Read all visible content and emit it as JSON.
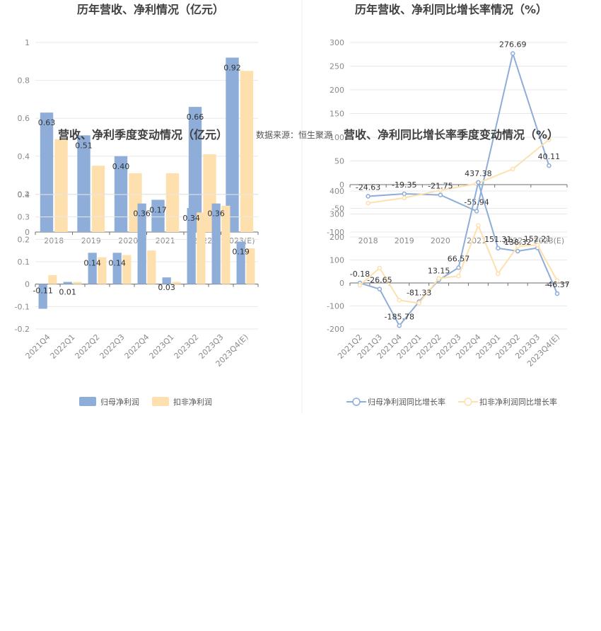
{
  "source_note": "数据来源：恒生聚源",
  "colors": {
    "net_profit": "#8eadd8",
    "deducted_profit": "#fde0ae",
    "net_profit_line": "#8eadd8",
    "deducted_line": "#fde0ae",
    "grid": "#e8e8e8",
    "axis": "#6e6e6e",
    "divider": "#eeeeee"
  },
  "chart_data": [
    {
      "id": "annual_amount",
      "type": "bar",
      "title": "历年营收、净利情况（亿元）",
      "categories": [
        "2018",
        "2019",
        "2020",
        "2021",
        "2022",
        "2023(E)"
      ],
      "x_tick_labels": [
        "2018",
        "2019",
        "2020",
        "2021",
        "2022",
        "2023(E)"
      ],
      "series": [
        {
          "name": "归母净利润",
          "values": [
            0.63,
            0.51,
            0.4,
            0.17,
            0.66,
            0.92
          ]
        },
        {
          "name": "扣非净利润",
          "values": [
            0.49,
            0.35,
            0.31,
            0.31,
            0.41,
            0.85
          ]
        }
      ],
      "ylim": [
        0,
        1
      ],
      "yticks": [
        "0",
        "0.2",
        "0.4",
        "0.6",
        "0.8",
        "1"
      ],
      "data_labels_series": 0,
      "grid": true
    },
    {
      "id": "annual_growth",
      "type": "line",
      "title": "历年营收、净利同比增长率情况（%）",
      "categories": [
        "2018",
        "2019",
        "2020",
        "2021",
        "2022",
        "2023(E)"
      ],
      "x_tick_labels": [
        "2018",
        "2019",
        "2020",
        "2021",
        "2022",
        "2023(E)"
      ],
      "series": [
        {
          "name": "归母净利润同比增长率",
          "values": [
            -24.63,
            -19.35,
            -21.75,
            -55.94,
            276.69,
            40.11
          ]
        },
        {
          "name": "扣非净利润同比增长率",
          "values": [
            -39,
            -28,
            -12,
            2,
            33,
            95
          ]
        }
      ],
      "ylim": [
        -100,
        300
      ],
      "yticks": [
        "-100",
        "-50",
        "0",
        "50",
        "100",
        "150",
        "200",
        "250",
        "300"
      ],
      "data_labels_series": 0,
      "grid": true
    },
    {
      "id": "quarterly_amount",
      "type": "bar",
      "title": "营收、净利季度变动情况（亿元）",
      "categories": [
        "2021Q4",
        "2022Q1",
        "2022Q2",
        "2022Q3",
        "2022Q4",
        "2023Q1",
        "2023Q2",
        "2023Q3",
        "2023Q4(E)"
      ],
      "x_tick_labels": [
        "2021Q4",
        "2022Q1",
        "2022Q2",
        "2022Q3",
        "2022Q4",
        "2023Q1",
        "2023Q2",
        "2023Q3",
        "2023Q4(E)"
      ],
      "series": [
        {
          "name": "归母净利润",
          "values": [
            -0.11,
            0.01,
            0.14,
            0.14,
            0.36,
            0.03,
            0.34,
            0.36,
            0.19
          ]
        },
        {
          "name": "扣非净利润",
          "values": [
            0.04,
            0.01,
            0.12,
            0.13,
            0.15,
            0.01,
            0.32,
            0.35,
            0.16
          ]
        }
      ],
      "ylim": [
        -0.2,
        0.4
      ],
      "yticks": [
        "-0.2",
        "-0.1",
        "0",
        "0.1",
        "0.2",
        "0.3",
        "0.4"
      ],
      "data_labels_series": 0,
      "grid": true,
      "legend": [
        "归母净利润",
        "扣非净利润"
      ],
      "legend_position": "bottom"
    },
    {
      "id": "quarterly_growth",
      "type": "line",
      "title": "营收、净利同比增长率季度变动情况（%）",
      "categories": [
        "2021Q2",
        "2021Q3",
        "2021Q4",
        "2022Q1",
        "2022Q2",
        "2022Q3",
        "2022Q4",
        "2023Q1",
        "2023Q2",
        "2023Q3",
        "2023Q4(E)"
      ],
      "x_tick_labels": [
        "2021Q2",
        "2021Q3",
        "2021Q4",
        "2022Q1",
        "2022Q2",
        "2022Q3",
        "2022Q4",
        "2023Q1",
        "2023Q2",
        "2023Q3",
        "2023Q4(E)"
      ],
      "series": [
        {
          "name": "归母净利润同比增长率",
          "values": [
            -0.18,
            -26.65,
            -185.78,
            -81.33,
            13.15,
            66.57,
            437.38,
            151.31,
            138.32,
            152.21,
            -46.37
          ]
        },
        {
          "name": "扣非净利润同比增长率",
          "values": [
            -10,
            65,
            -75,
            -88,
            20,
            30,
            250,
            40,
            160,
            165,
            10
          ]
        }
      ],
      "ylim": [
        -200,
        400
      ],
      "yticks": [
        "-200",
        "-100",
        "0",
        "100",
        "200",
        "300",
        "400"
      ],
      "data_labels_series": 0,
      "grid": true,
      "legend": [
        "归母净利润同比增长率",
        "扣非净利润同比增长率"
      ],
      "legend_position": "bottom"
    }
  ]
}
